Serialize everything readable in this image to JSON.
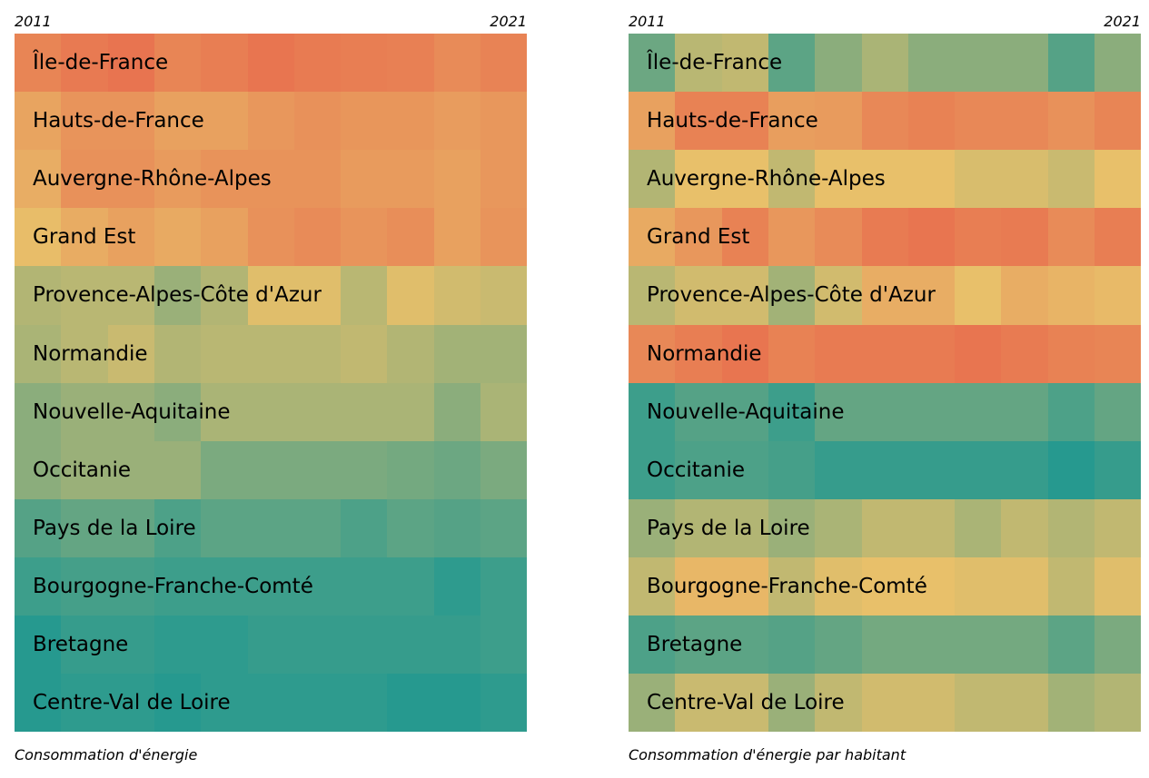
{
  "chart_data": [
    {
      "type": "heatmap",
      "title": "",
      "caption": "Consommation d'énergie",
      "year_start": "2011",
      "year_end": "2021",
      "years": [
        "2011",
        "2012",
        "2013",
        "2014",
        "2015",
        "2016",
        "2017",
        "2018",
        "2019",
        "2020",
        "2021"
      ],
      "value_scale": "relative rank, 0 = low (teal) to 1 = high (red)",
      "colors": {
        "low": "#26998f",
        "mid": "#e8c06a",
        "high": "#e8724f"
      },
      "rows": [
        {
          "label": "Île-de-France",
          "values": [
            0.88,
            0.95,
            0.99,
            0.88,
            0.92,
            0.98,
            0.94,
            0.92,
            0.91,
            0.84,
            0.89
          ]
        },
        {
          "label": "Hauts-de-France",
          "values": [
            0.68,
            0.78,
            0.78,
            0.7,
            0.7,
            0.76,
            0.8,
            0.77,
            0.77,
            0.73,
            0.76
          ]
        },
        {
          "label": "Auvergne-Rhône-Alpes",
          "values": [
            0.62,
            0.8,
            0.8,
            0.74,
            0.79,
            0.79,
            0.79,
            0.74,
            0.74,
            0.7,
            0.76
          ]
        },
        {
          "label": "Grand Est",
          "values": [
            0.52,
            0.63,
            0.7,
            0.64,
            0.7,
            0.8,
            0.84,
            0.78,
            0.82,
            0.7,
            0.78
          ]
        },
        {
          "label": "Provence-Alpes-Côte d'Azur",
          "values": [
            0.36,
            0.38,
            0.38,
            0.3,
            0.36,
            0.48,
            0.48,
            0.38,
            0.48,
            0.44,
            0.42
          ]
        },
        {
          "label": "Normandie",
          "values": [
            0.34,
            0.38,
            0.42,
            0.36,
            0.38,
            0.38,
            0.38,
            0.4,
            0.36,
            0.32,
            0.32
          ]
        },
        {
          "label": "Nouvelle-Aquitaine",
          "values": [
            0.26,
            0.3,
            0.3,
            0.26,
            0.34,
            0.34,
            0.34,
            0.34,
            0.34,
            0.26,
            0.34
          ]
        },
        {
          "label": "Occitanie",
          "values": [
            0.26,
            0.3,
            0.3,
            0.3,
            0.22,
            0.22,
            0.22,
            0.22,
            0.2,
            0.18,
            0.22
          ]
        },
        {
          "label": "Pays de la Loire",
          "values": [
            0.12,
            0.16,
            0.16,
            0.1,
            0.14,
            0.14,
            0.14,
            0.1,
            0.14,
            0.12,
            0.14
          ]
        },
        {
          "label": "Bourgogne-Franche-Comté",
          "values": [
            0.06,
            0.08,
            0.08,
            0.06,
            0.06,
            0.06,
            0.06,
            0.06,
            0.06,
            0.02,
            0.06
          ]
        },
        {
          "label": "Bretagne",
          "values": [
            0.0,
            0.04,
            0.04,
            0.02,
            0.02,
            0.04,
            0.04,
            0.04,
            0.04,
            0.04,
            0.06
          ]
        },
        {
          "label": "Centre-Val de Loire",
          "values": [
            0.0,
            0.02,
            0.02,
            0.0,
            0.02,
            0.02,
            0.02,
            0.02,
            0.0,
            0.0,
            0.02
          ]
        }
      ]
    },
    {
      "type": "heatmap",
      "title": "",
      "caption": "Consommation d'énergie par habitant",
      "year_start": "2011",
      "year_end": "2021",
      "years": [
        "2011",
        "2012",
        "2013",
        "2014",
        "2015",
        "2016",
        "2017",
        "2018",
        "2019",
        "2020",
        "2021"
      ],
      "value_scale": "relative rank, 0 = low (teal) to 1 = high (red)",
      "colors": {
        "low": "#26998f",
        "mid": "#e8c06a",
        "high": "#e8724f"
      },
      "rows": [
        {
          "label": "Île-de-France",
          "values": [
            0.18,
            0.38,
            0.4,
            0.14,
            0.26,
            0.34,
            0.26,
            0.26,
            0.26,
            0.12,
            0.26
          ]
        },
        {
          "label": "Hauts-de-France",
          "values": [
            0.7,
            0.9,
            0.9,
            0.72,
            0.74,
            0.86,
            0.9,
            0.86,
            0.86,
            0.8,
            0.88
          ]
        },
        {
          "label": "Auvergne-Rhône-Alpes",
          "values": [
            0.36,
            0.5,
            0.5,
            0.4,
            0.5,
            0.5,
            0.5,
            0.46,
            0.46,
            0.42,
            0.5
          ]
        },
        {
          "label": "Grand Est",
          "values": [
            0.64,
            0.76,
            0.9,
            0.76,
            0.84,
            0.94,
            0.98,
            0.92,
            0.94,
            0.84,
            0.92
          ]
        },
        {
          "label": "Provence-Alpes-Côte d'Azur",
          "values": [
            0.38,
            0.44,
            0.44,
            0.32,
            0.44,
            0.62,
            0.62,
            0.5,
            0.62,
            0.58,
            0.54
          ]
        },
        {
          "label": "Normandie",
          "values": [
            0.86,
            0.92,
            0.98,
            0.9,
            0.94,
            0.94,
            0.94,
            0.98,
            0.94,
            0.9,
            0.88
          ]
        },
        {
          "label": "Nouvelle-Aquitaine",
          "values": [
            0.06,
            0.12,
            0.12,
            0.06,
            0.16,
            0.16,
            0.16,
            0.16,
            0.16,
            0.1,
            0.16
          ]
        },
        {
          "label": "Occitanie",
          "values": [
            0.06,
            0.1,
            0.1,
            0.08,
            0.04,
            0.04,
            0.04,
            0.04,
            0.04,
            0.0,
            0.04
          ]
        },
        {
          "label": "Pays de la Loire",
          "values": [
            0.3,
            0.36,
            0.36,
            0.3,
            0.34,
            0.4,
            0.4,
            0.34,
            0.4,
            0.36,
            0.4
          ]
        },
        {
          "label": "Bourgogne-Franche-Comté",
          "values": [
            0.4,
            0.56,
            0.56,
            0.4,
            0.48,
            0.5,
            0.5,
            0.48,
            0.48,
            0.4,
            0.48
          ]
        },
        {
          "label": "Bretagne",
          "values": [
            0.1,
            0.14,
            0.14,
            0.12,
            0.16,
            0.2,
            0.2,
            0.2,
            0.2,
            0.14,
            0.22
          ]
        },
        {
          "label": "Centre-Val de Loire",
          "values": [
            0.3,
            0.42,
            0.42,
            0.3,
            0.4,
            0.44,
            0.44,
            0.4,
            0.4,
            0.32,
            0.36
          ]
        }
      ]
    }
  ]
}
